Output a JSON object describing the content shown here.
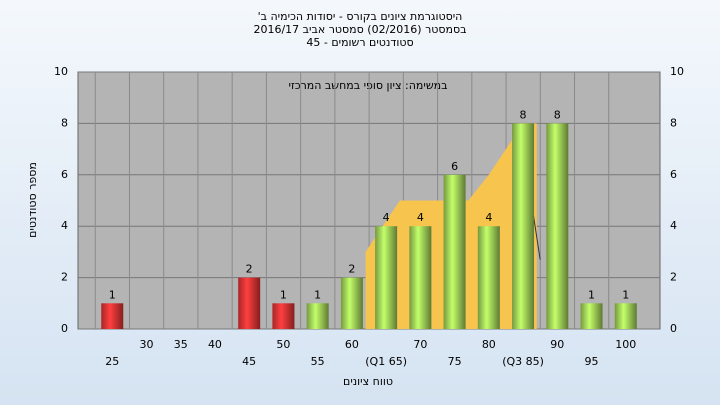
{
  "chart_data": {
    "type": "bar",
    "title": [
      "היסטוגרמת ציונים בקורס - יסודות הכימיה ב'",
      "בסמסטר  (02/2016)  סמסטר אביב 2016/17",
      "סטודנטים רשומים - 45"
    ],
    "annotation": "במשימה: ציון סופי במחשב המרכזי",
    "y_label": "מספר סטודנטים",
    "x_label": "טווח ציונים",
    "x": [
      25,
      30,
      35,
      40,
      45,
      50,
      55,
      60,
      65,
      70,
      75,
      80,
      85,
      90,
      95,
      100
    ],
    "categories": [
      "25",
      "30",
      "35",
      "40",
      "45",
      "50",
      "55",
      "60",
      "(Q1 65)",
      "70",
      "75",
      "80",
      "(Q3 85)",
      "90",
      "95",
      "100"
    ],
    "values": [
      1,
      0,
      0,
      0,
      2,
      1,
      1,
      2,
      4,
      4,
      6,
      4,
      8,
      8,
      1,
      1
    ],
    "colors": [
      "#e03232",
      "#e03232",
      "#e03232",
      "#e03232",
      "#e03232",
      "#e03232",
      "#9ccc55",
      "#9ccc55",
      "#9ccc55",
      "#9ccc55",
      "#9ccc55",
      "#9ccc55",
      "#9ccc55",
      "#9ccc55",
      "#9ccc55",
      "#9ccc55"
    ],
    "overlays": [
      {
        "type": "area",
        "color": "#f7c44e",
        "x": [
          62,
          67,
          72,
          77,
          80,
          85,
          87
        ],
        "values": [
          3,
          5,
          5,
          5,
          6,
          8,
          8
        ]
      },
      {
        "type": "line",
        "color": "#333333",
        "x": [
          85.5,
          87.5
        ],
        "values": [
          6.2,
          2.7
        ]
      }
    ],
    "xlim": [
      20,
      105
    ],
    "ylim": [
      0,
      10
    ],
    "yticks": [
      0,
      2,
      4,
      6,
      8,
      10
    ],
    "grid": true
  }
}
